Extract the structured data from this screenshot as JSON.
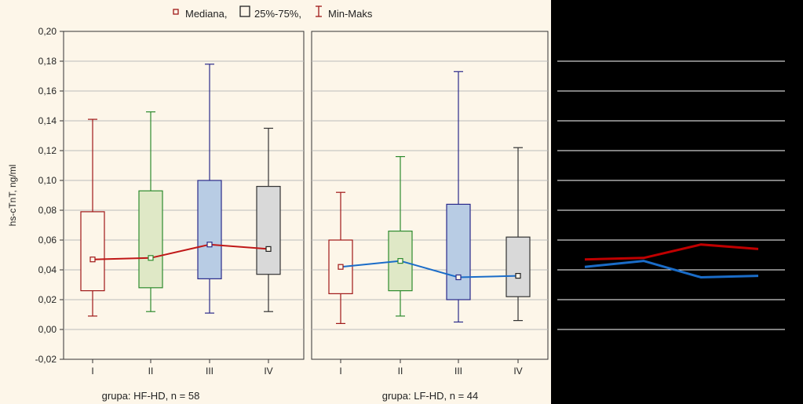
{
  "legend": {
    "median": "Mediana,",
    "iqr": "25%-75%,",
    "range": "Min-Maks"
  },
  "ylabel": "hs-cTnT, ng/ml",
  "colors": {
    "group_I": "#a01818",
    "group_II": "#2e8b2e",
    "group_III": "#2a2a8a",
    "group_IV": "#333333",
    "fill_I": "#fdf6e9",
    "fill_II": "#dfe8c6",
    "fill_III": "#b8cce4",
    "fill_IV": "#d9d9d9",
    "line_HF": "#c01818",
    "line_LF": "#1a6cc8",
    "overlay_grid": "#ffffff",
    "overlay_line_HF": "#c00000",
    "overlay_line_LF": "#1a6cc8"
  },
  "chart_data": {
    "type": "boxplot",
    "ylim": [
      -0.02,
      0.2
    ],
    "yticks": [
      -0.02,
      0.0,
      0.02,
      0.04,
      0.06,
      0.08,
      0.1,
      0.12,
      0.14,
      0.16,
      0.18,
      0.2
    ],
    "ytick_labels": [
      "-0,02",
      "0,00",
      "0,02",
      "0,04",
      "0,06",
      "0,08",
      "0,10",
      "0,12",
      "0,14",
      "0,16",
      "0,18",
      "0,20"
    ],
    "categories": [
      "I",
      "II",
      "III",
      "IV"
    ],
    "panels": [
      {
        "label": "grupa: HF-HD, n = 58",
        "boxes": [
          {
            "min": 0.009,
            "q1": 0.026,
            "median": 0.047,
            "q3": 0.079,
            "max": 0.141
          },
          {
            "min": 0.012,
            "q1": 0.028,
            "median": 0.048,
            "q3": 0.093,
            "max": 0.146
          },
          {
            "min": 0.011,
            "q1": 0.034,
            "median": 0.057,
            "q3": 0.1,
            "max": 0.178
          },
          {
            "min": 0.012,
            "q1": 0.037,
            "median": 0.054,
            "q3": 0.096,
            "max": 0.135
          }
        ]
      },
      {
        "label": "grupa: LF-HD, n = 44",
        "boxes": [
          {
            "min": 0.004,
            "q1": 0.024,
            "median": 0.042,
            "q3": 0.06,
            "max": 0.092
          },
          {
            "min": 0.009,
            "q1": 0.026,
            "median": 0.046,
            "q3": 0.066,
            "max": 0.116
          },
          {
            "min": 0.005,
            "q1": 0.02,
            "median": 0.035,
            "q3": 0.084,
            "max": 0.173
          },
          {
            "min": 0.006,
            "q1": 0.022,
            "median": 0.036,
            "q3": 0.062,
            "max": 0.122
          }
        ]
      }
    ],
    "overlay": {
      "gridlines": [
        -0.02,
        0.0,
        0.02,
        0.04,
        0.06,
        0.08,
        0.1,
        0.12,
        0.14,
        0.16,
        0.18
      ],
      "series": [
        {
          "name": "HF-HD median",
          "values": [
            0.047,
            0.048,
            0.057,
            0.054
          ]
        },
        {
          "name": "LF-HD median",
          "values": [
            0.042,
            0.046,
            0.035,
            0.036
          ]
        }
      ]
    }
  }
}
